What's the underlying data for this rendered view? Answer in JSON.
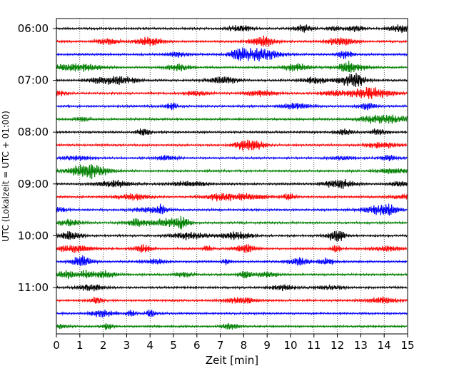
{
  "chart_data": {
    "type": "line",
    "title": "",
    "xlabel": "Zeit  [min]",
    "ylabel": "UTC (Lokalzeit = UTC + 01:00)",
    "xlim": [
      0,
      15
    ],
    "x_ticks": [
      "0",
      "1",
      "2",
      "3",
      "4",
      "5",
      "6",
      "7",
      "8",
      "9",
      "10",
      "11",
      "12",
      "13",
      "14",
      "15"
    ],
    "y_tick_labels": [
      "06:00",
      "07:00",
      "08:00",
      "09:00",
      "10:00",
      "11:00"
    ],
    "trace_interval_minutes": 15,
    "trace_start_times": [
      "06:00",
      "06:15",
      "06:30",
      "06:45",
      "07:00",
      "07:15",
      "07:30",
      "07:45",
      "08:00",
      "08:15",
      "08:30",
      "08:45",
      "09:00",
      "09:15",
      "09:30",
      "09:45",
      "10:00",
      "10:15",
      "10:30",
      "10:45",
      "11:00",
      "11:15",
      "11:30",
      "11:45"
    ],
    "trace_colors": [
      "#000000",
      "#ff0000",
      "#0000ff",
      "#008000"
    ],
    "grid": "vertical dotted",
    "legend": "none"
  }
}
